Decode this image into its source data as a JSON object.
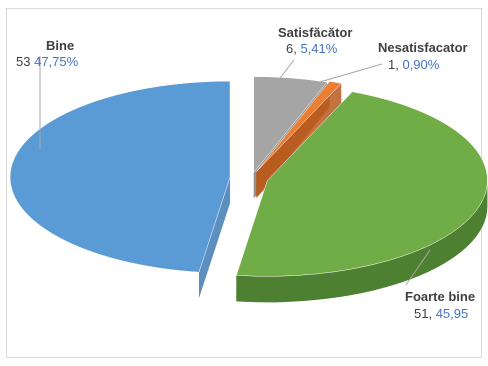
{
  "chart_data": {
    "type": "pie",
    "title": "",
    "series": [
      {
        "name": "Bine",
        "count": "53",
        "percent": "47,75%",
        "value": 47.75,
        "color": "#5b9bd5",
        "dark": "#3f7ab3"
      },
      {
        "name": "Satisfăcător",
        "count": "6,",
        "percent": "5,41%",
        "value": 5.41,
        "color": "#a5a5a5",
        "dark": "#7f7f7f"
      },
      {
        "name": "Nesatisfacator",
        "count": "1,",
        "percent": "0,90%",
        "value": 0.9,
        "color": "#ed7d31",
        "dark": "#b85a1d"
      },
      {
        "name": "Foarte bine",
        "count": "51,",
        "percent": "45,95",
        "value": 45.95,
        "color": "#70ad47",
        "dark": "#4e8031"
      }
    ]
  }
}
